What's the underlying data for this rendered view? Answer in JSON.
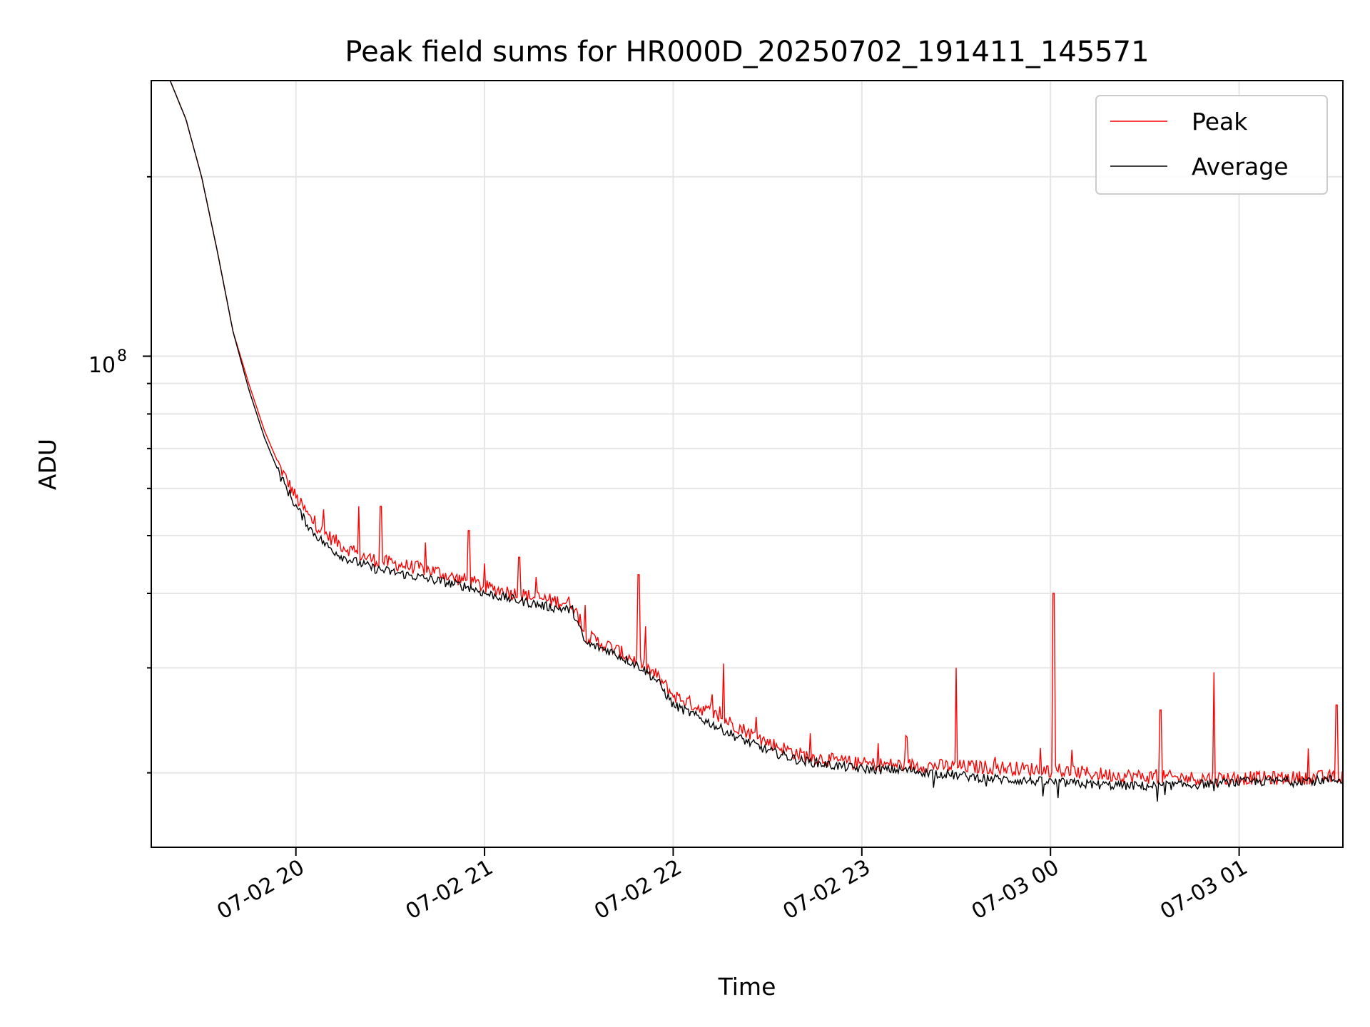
{
  "chart_data": {
    "type": "line",
    "title": "Peak field sums for HR000D_20250702_191411_145571",
    "xlabel": "Time",
    "ylabel": "ADU",
    "y_scale": "log",
    "x_range": [
      "2025-07-02 19:14",
      "2025-07-03 01:33"
    ],
    "ylim": [
      15000000,
      290000000
    ],
    "x_ticks": [
      "07-02 20",
      "07-02 21",
      "07-02 22",
      "07-02 23",
      "07-03 00",
      "07-03 01"
    ],
    "y_ticks": [
      "10^8"
    ],
    "y_tick_base": "10",
    "y_tick_exp": "8",
    "grid": true,
    "legend_position": "top-right",
    "series": [
      {
        "name": "Peak",
        "color": "#ff0000",
        "x": [
          "2025-07-02 19:14",
          "2025-07-02 19:20",
          "2025-07-02 19:25",
          "2025-07-02 19:30",
          "2025-07-02 19:35",
          "2025-07-02 19:40",
          "2025-07-02 19:45",
          "2025-07-02 19:50",
          "2025-07-02 19:55",
          "2025-07-02 20:00",
          "2025-07-02 20:05",
          "2025-07-02 20:10",
          "2025-07-02 20:15",
          "2025-07-02 20:20",
          "2025-07-02 20:25",
          "2025-07-02 20:30",
          "2025-07-02 20:35",
          "2025-07-02 20:40",
          "2025-07-02 20:45",
          "2025-07-02 20:50",
          "2025-07-02 20:55",
          "2025-07-02 21:00",
          "2025-07-02 21:10",
          "2025-07-02 21:20",
          "2025-07-02 21:28",
          "2025-07-02 21:32",
          "2025-07-02 21:40",
          "2025-07-02 21:45",
          "2025-07-02 21:50",
          "2025-07-02 21:55",
          "2025-07-02 22:00",
          "2025-07-02 22:10",
          "2025-07-02 22:20",
          "2025-07-02 22:30",
          "2025-07-02 22:40",
          "2025-07-02 22:50",
          "2025-07-02 23:00",
          "2025-07-02 23:15",
          "2025-07-02 23:30",
          "2025-07-02 23:45",
          "2025-07-03 00:00",
          "2025-07-03 00:15",
          "2025-07-03 00:30",
          "2025-07-03 00:45",
          "2025-07-03 01:00",
          "2025-07-03 01:15",
          "2025-07-03 01:33"
        ],
        "values": [
          290000000,
          290000000,
          250000000,
          200000000,
          150000000,
          110000000,
          90000000,
          75000000,
          65000000,
          58000000,
          53000000,
          50000000,
          48000000,
          46500000,
          45500000,
          45000000,
          44500000,
          44000000,
          43500000,
          42500000,
          42000000,
          41000000,
          40000000,
          39000000,
          38500000,
          34000000,
          32500000,
          31500000,
          30500000,
          29000000,
          27000000,
          25500000,
          24000000,
          22500000,
          21500000,
          21000000,
          20700000,
          20600000,
          20500000,
          20400000,
          20200000,
          19900000,
          19700000,
          19600000,
          19600000,
          19600000,
          19700000
        ],
        "spikes": [
          {
            "x": "2025-07-02 20:20",
            "value": 56000000
          },
          {
            "x": "2025-07-02 20:27",
            "value": 56000000
          },
          {
            "x": "2025-07-02 20:55",
            "value": 51000000
          },
          {
            "x": "2025-07-02 21:11",
            "value": 46000000
          },
          {
            "x": "2025-07-02 21:49",
            "value": 43000000
          },
          {
            "x": "2025-07-02 22:16",
            "value": 30500000
          },
          {
            "x": "2025-07-02 23:30",
            "value": 30000000
          },
          {
            "x": "2025-07-03 00:01",
            "value": 40000000
          },
          {
            "x": "2025-07-03 00:35",
            "value": 25500000
          },
          {
            "x": "2025-07-03 00:52",
            "value": 29500000
          },
          {
            "x": "2025-07-03 01:31",
            "value": 26000000
          }
        ]
      },
      {
        "name": "Average",
        "color": "#000000",
        "x": [
          "2025-07-02 19:14",
          "2025-07-02 19:20",
          "2025-07-02 19:25",
          "2025-07-02 19:30",
          "2025-07-02 19:35",
          "2025-07-02 19:40",
          "2025-07-02 19:45",
          "2025-07-02 19:50",
          "2025-07-02 19:55",
          "2025-07-02 20:00",
          "2025-07-02 20:05",
          "2025-07-02 20:10",
          "2025-07-02 20:15",
          "2025-07-02 20:20",
          "2025-07-02 20:25",
          "2025-07-02 20:30",
          "2025-07-02 20:35",
          "2025-07-02 20:40",
          "2025-07-02 20:45",
          "2025-07-02 20:50",
          "2025-07-02 20:55",
          "2025-07-02 21:00",
          "2025-07-02 21:10",
          "2025-07-02 21:20",
          "2025-07-02 21:28",
          "2025-07-02 21:32",
          "2025-07-02 21:40",
          "2025-07-02 21:45",
          "2025-07-02 21:50",
          "2025-07-02 21:55",
          "2025-07-02 22:00",
          "2025-07-02 22:10",
          "2025-07-02 22:20",
          "2025-07-02 22:30",
          "2025-07-02 22:40",
          "2025-07-02 22:50",
          "2025-07-02 23:00",
          "2025-07-02 23:15",
          "2025-07-02 23:30",
          "2025-07-02 23:45",
          "2025-07-03 00:00",
          "2025-07-03 00:15",
          "2025-07-03 00:30",
          "2025-07-03 00:45",
          "2025-07-03 01:00",
          "2025-07-03 01:15",
          "2025-07-03 01:33"
        ],
        "values": [
          290000000,
          290000000,
          250000000,
          200000000,
          150000000,
          110000000,
          88000000,
          73000000,
          63000000,
          56000000,
          51000000,
          48000000,
          46000000,
          45000000,
          44000000,
          43500000,
          43000000,
          42500000,
          42000000,
          41500000,
          41000000,
          40000000,
          39000000,
          38000000,
          37500000,
          33000000,
          32000000,
          31000000,
          30000000,
          28500000,
          26000000,
          24500000,
          23000000,
          21800000,
          21000000,
          20600000,
          20300000,
          20200000,
          19800000,
          19500000,
          19300000,
          19100000,
          19000000,
          19100000,
          19300000,
          19400000,
          19500000
        ]
      }
    ]
  }
}
